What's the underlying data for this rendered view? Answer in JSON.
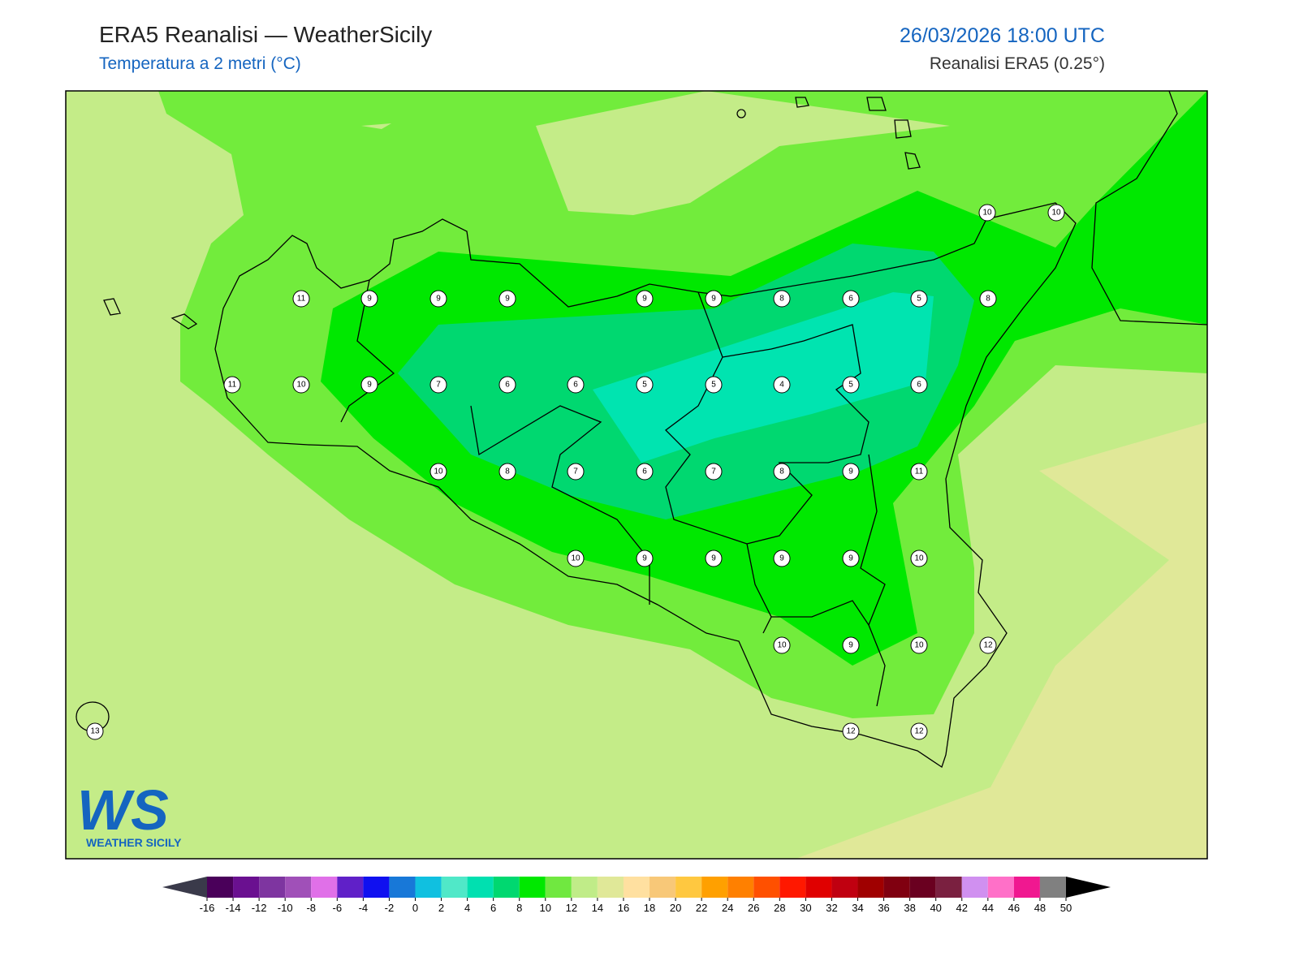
{
  "header": {
    "title": "ERA5 Reanalisi — WeatherSicily",
    "subtitle": "Temperatura a 2 metri (°C)",
    "datetime": "26/03/2026 18:00 UTC",
    "source": "Reanalisi ERA5 (0.25°)"
  },
  "stations": [
    10,
    10,
    11,
    9,
    9,
    9,
    9,
    9,
    8,
    6,
    5,
    8,
    11,
    10,
    9,
    7,
    6,
    6,
    5,
    5,
    4,
    5,
    6,
    10,
    8,
    7,
    6,
    7,
    8,
    9,
    11,
    10,
    9,
    9,
    9,
    9,
    10,
    10,
    9,
    10,
    12,
    13,
    12,
    12
  ],
  "colorbar": {
    "ticks": [
      -16,
      -14,
      -12,
      -10,
      -8,
      -6,
      -4,
      -2,
      0,
      2,
      4,
      6,
      8,
      10,
      12,
      14,
      16,
      18,
      20,
      22,
      24,
      26,
      28,
      30,
      32,
      34,
      36,
      38,
      40,
      42,
      44,
      46,
      48,
      50
    ],
    "colors": [
      "#4a005a",
      "#6a1090",
      "#7e35a0",
      "#a050b8",
      "#e070e8",
      "#6020c8",
      "#1010f0",
      "#1878d8",
      "#10c0e0",
      "#50e8c8",
      "#00e0b0",
      "#00d870",
      "#00e800",
      "#70e840",
      "#c0ec88",
      "#e0e898",
      "#ffe0a0",
      "#f8c878",
      "#ffc840",
      "#ffa000",
      "#ff8000",
      "#ff5000",
      "#ff1800",
      "#e00000",
      "#c00010",
      "#a00000",
      "#800010",
      "#6a0020",
      "#7a2040",
      "#d090f0",
      "#ff70c8",
      "#f01890",
      "#808080"
    ],
    "under_color": "#3a3a4a",
    "over_color": "#000000"
  },
  "logo": {
    "mark": "WS",
    "text": "WEATHER SICILY"
  }
}
